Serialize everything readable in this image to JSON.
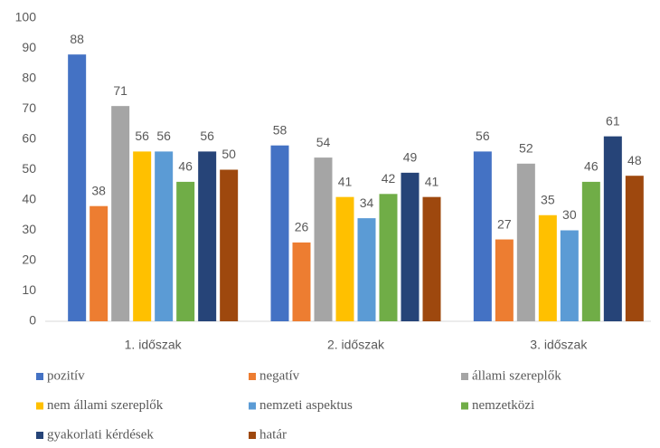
{
  "chart_data": {
    "type": "bar",
    "categories": [
      "1. időszak",
      "2. időszak",
      "3. időszak"
    ],
    "series": [
      {
        "name": "pozitív",
        "color": "#4472c4",
        "values": [
          88,
          58,
          56
        ]
      },
      {
        "name": "negatív",
        "color": "#ed7d31",
        "values": [
          38,
          26,
          27
        ]
      },
      {
        "name": "állami szereplők",
        "color": "#a5a5a5",
        "values": [
          71,
          54,
          52
        ]
      },
      {
        "name": "nem állami szereplők",
        "color": "#ffc000",
        "values": [
          56,
          41,
          35
        ]
      },
      {
        "name": "nemzeti aspektus",
        "color": "#5b9bd5",
        "values": [
          56,
          34,
          30
        ]
      },
      {
        "name": "nemzetközi",
        "color": "#70ad47",
        "values": [
          46,
          42,
          46
        ]
      },
      {
        "name": "gyakorlati kérdések",
        "color": "#264478",
        "values": [
          56,
          49,
          61
        ]
      },
      {
        "name": "határ",
        "color": "#9e480e",
        "values": [
          50,
          41,
          48
        ]
      }
    ],
    "ylim": [
      0,
      100
    ],
    "yticks": [
      0,
      10,
      20,
      30,
      40,
      50,
      60,
      70,
      80,
      90,
      100
    ],
    "grid": false,
    "legend": "bottom",
    "data_labels": true
  }
}
